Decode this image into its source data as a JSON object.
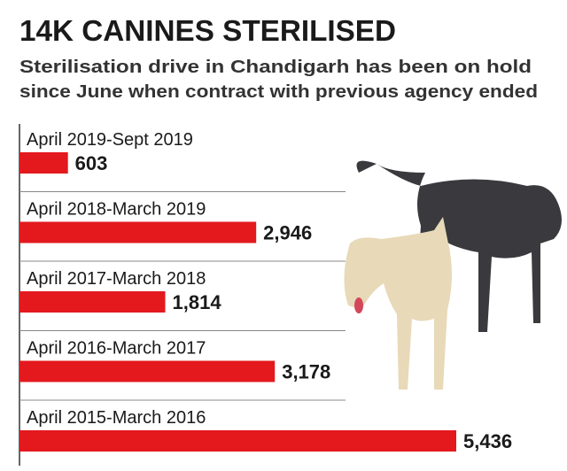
{
  "chart_data": {
    "type": "bar",
    "orientation": "horizontal",
    "title": "14K CANINES STERILISED",
    "subtitle": [
      "Sterilisation drive in Chandigarh has been on hold",
      "since June when contract with previous agency ended"
    ],
    "categories": [
      "April 2019-Sept 2019",
      "April 2018-March 2019",
      "April 2017-March 2018",
      "April 2016-March 2017",
      "April 2015-March 2016"
    ],
    "values": [
      603,
      2946,
      1814,
      3178,
      5436
    ],
    "value_labels": [
      "603",
      "2,946",
      "1,814",
      "3,178",
      "5,436"
    ],
    "color": "#e3191e"
  }
}
